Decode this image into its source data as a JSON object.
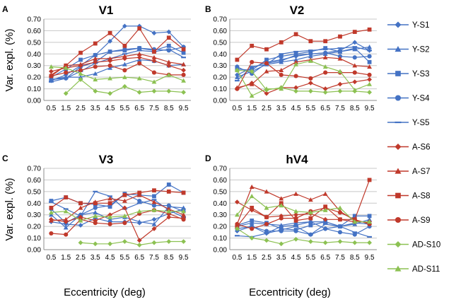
{
  "chart_data": {
    "type": "line",
    "x": [
      0.5,
      1.5,
      2.5,
      3.5,
      4.5,
      5.5,
      6.5,
      7.5,
      8.5,
      9.5
    ],
    "x_tick_labels": [
      "0.5",
      "1.5",
      "2.5",
      "3.5",
      "4.5",
      "5.5",
      "6.5",
      "7.5",
      "8.5",
      "9.5"
    ],
    "ylim": [
      0,
      0.7
    ],
    "y_tick_labels": [
      "0.00",
      "0.10",
      "0.20",
      "0.30",
      "0.40",
      "0.50",
      "0.60",
      "0.70"
    ],
    "ylabel": "Var. expl. (%)",
    "xlabel": "Eccentricity (deg)",
    "grid": true,
    "legend": [
      {
        "name": "Y-S1",
        "color": "#4472c4",
        "marker": "diamond"
      },
      {
        "name": "Y-S2",
        "color": "#4472c4",
        "marker": "triangle"
      },
      {
        "name": "Y-S3",
        "color": "#4472c4",
        "marker": "square"
      },
      {
        "name": "Y-S4",
        "color": "#4472c4",
        "marker": "circle"
      },
      {
        "name": "Y-S5",
        "color": "#4472c4",
        "marker": "dash"
      },
      {
        "name": "A-S6",
        "color": "#c0392b",
        "marker": "diamond"
      },
      {
        "name": "A-S7",
        "color": "#c0392b",
        "marker": "triangle"
      },
      {
        "name": "A-S8",
        "color": "#c0392b",
        "marker": "square"
      },
      {
        "name": "A-S9",
        "color": "#c0392b",
        "marker": "circle"
      },
      {
        "name": "AD-S10",
        "color": "#8cc152",
        "marker": "diamond"
      },
      {
        "name": "AD-S11",
        "color": "#8cc152",
        "marker": "triangle"
      }
    ],
    "panels": [
      {
        "letter": "A",
        "title": "V1",
        "series": [
          {
            "name": "Y-S1",
            "values": [
              0.17,
              0.22,
              0.3,
              0.39,
              0.51,
              0.64,
              0.64,
              0.58,
              0.59,
              0.46
            ]
          },
          {
            "name": "Y-S2",
            "values": [
              0.18,
              0.2,
              0.2,
              0.23,
              0.28,
              0.31,
              0.35,
              0.34,
              0.3,
              0.31
            ]
          },
          {
            "name": "Y-S3",
            "values": [
              0.2,
              0.27,
              0.35,
              0.39,
              0.42,
              0.43,
              0.45,
              0.43,
              0.47,
              0.41
            ]
          },
          {
            "name": "Y-S4",
            "values": [
              0.18,
              0.19,
              0.29,
              0.33,
              0.42,
              0.44,
              0.45,
              0.44,
              0.43,
              0.46
            ]
          },
          {
            "name": "Y-S5",
            "values": [
              0.16,
              0.19,
              0.25,
              0.32,
              0.36,
              0.4,
              0.43,
              0.42,
              0.44,
              0.37
            ]
          },
          {
            "name": "A-S6",
            "values": [
              0.25,
              0.28,
              0.3,
              0.33,
              0.34,
              0.36,
              0.37,
              0.34,
              0.3,
              0.26
            ]
          },
          {
            "name": "A-S7",
            "values": [
              0.22,
              0.3,
              0.31,
              0.36,
              0.36,
              0.38,
              0.4,
              0.37,
              0.33,
              0.31
            ]
          },
          {
            "name": "A-S8",
            "values": [
              0.21,
              0.3,
              0.41,
              0.49,
              0.58,
              0.47,
              0.62,
              0.42,
              0.54,
              0.44
            ]
          },
          {
            "name": "A-S9",
            "values": [
              0.21,
              0.24,
              0.26,
              0.29,
              0.3,
              0.26,
              0.32,
              0.24,
              0.22,
              0.22
            ]
          },
          {
            "name": "AD-S10",
            "values": [
              null,
              0.06,
              0.18,
              0.08,
              0.06,
              0.12,
              0.07,
              0.08,
              0.08,
              0.07
            ]
          },
          {
            "name": "AD-S11",
            "values": [
              0.29,
              0.28,
              0.23,
              0.18,
              0.19,
              0.2,
              0.19,
              0.16,
              0.22,
              0.17
            ]
          }
        ]
      },
      {
        "letter": "B",
        "title": "V2",
        "series": [
          {
            "name": "Y-S1",
            "values": [
              0.22,
              0.28,
              0.33,
              0.35,
              0.38,
              0.4,
              0.41,
              0.43,
              0.5,
              0.43
            ]
          },
          {
            "name": "Y-S2",
            "values": [
              0.2,
              0.25,
              0.31,
              0.33,
              0.35,
              0.38,
              0.4,
              0.42,
              0.44,
              0.46
            ]
          },
          {
            "name": "Y-S3",
            "values": [
              0.27,
              0.26,
              0.35,
              0.38,
              0.4,
              0.42,
              0.45,
              0.42,
              0.45,
              0.33
            ]
          },
          {
            "name": "Y-S4",
            "values": [
              0.29,
              0.23,
              0.32,
              0.34,
              0.39,
              0.4,
              0.41,
              0.38,
              0.37,
              0.38
            ]
          },
          {
            "name": "Y-S5",
            "values": [
              0.17,
              0.29,
              0.31,
              0.4,
              0.42,
              0.43,
              0.44,
              0.45,
              0.46,
              0.43
            ]
          },
          {
            "name": "A-S6",
            "values": [
              0.1,
              0.15,
              0.06,
              0.11,
              0.11,
              0.15,
              0.1,
              0.14,
              0.16,
              0.18
            ]
          },
          {
            "name": "A-S7",
            "values": [
              0.11,
              0.14,
              0.25,
              0.26,
              0.33,
              0.35,
              0.37,
              0.36,
              0.3,
              0.29
            ]
          },
          {
            "name": "A-S8",
            "values": [
              0.35,
              0.47,
              0.44,
              0.5,
              0.57,
              0.51,
              0.51,
              0.55,
              0.59,
              0.61
            ]
          },
          {
            "name": "A-S9",
            "values": [
              0.1,
              0.33,
              0.32,
              0.22,
              0.21,
              0.19,
              0.24,
              0.24,
              0.24,
              0.22
            ]
          },
          {
            "name": "AD-S10",
            "values": [
              0.26,
              0.25,
              0.09,
              0.11,
              0.08,
              0.08,
              0.07,
              0.08,
              0.08,
              0.07
            ]
          },
          {
            "name": "AD-S11",
            "values": [
              0.26,
              0.04,
              0.1,
              0.1,
              0.31,
              0.34,
              0.29,
              0.25,
              0.09,
              0.14
            ]
          }
        ]
      },
      {
        "letter": "C",
        "title": "V3",
        "series": [
          {
            "name": "Y-S1",
            "values": [
              0.24,
              0.22,
              0.21,
              0.27,
              0.24,
              0.24,
              0.23,
              0.26,
              0.31,
              0.35
            ]
          },
          {
            "name": "Y-S2",
            "values": [
              0.3,
              0.19,
              0.3,
              0.32,
              0.26,
              0.28,
              0.24,
              0.22,
              0.37,
              0.36
            ]
          },
          {
            "name": "Y-S3",
            "values": [
              0.42,
              0.45,
              0.4,
              0.39,
              0.37,
              0.48,
              0.47,
              0.46,
              0.56,
              0.49
            ]
          },
          {
            "name": "Y-S4",
            "values": [
              0.35,
              0.23,
              0.3,
              0.36,
              0.38,
              0.48,
              0.42,
              0.38,
              0.38,
              0.33
            ]
          },
          {
            "name": "Y-S5",
            "values": [
              0.41,
              0.35,
              0.29,
              0.5,
              0.46,
              0.35,
              0.4,
              0.43,
              0.34,
              0.28
            ]
          },
          {
            "name": "A-S6",
            "values": [
              0.26,
              0.24,
              0.28,
              0.25,
              0.3,
              0.36,
              0.08,
              0.18,
              0.28,
              0.27
            ]
          },
          {
            "name": "A-S7",
            "values": [
              0.25,
              0.26,
              0.36,
              0.41,
              0.44,
              0.42,
              0.47,
              0.41,
              0.35,
              0.3
            ]
          },
          {
            "name": "A-S8",
            "values": [
              0.36,
              0.45,
              0.4,
              0.4,
              0.4,
              0.47,
              0.49,
              0.51,
              0.5,
              0.49
            ]
          },
          {
            "name": "A-S9",
            "values": [
              0.14,
              0.13,
              0.26,
              0.23,
              0.22,
              0.23,
              0.31,
              0.34,
              0.31,
              0.26
            ]
          },
          {
            "name": "AD-S10",
            "values": [
              null,
              null,
              0.06,
              0.05,
              0.05,
              0.07,
              0.04,
              0.06,
              0.07,
              0.07
            ]
          },
          {
            "name": "AD-S11",
            "values": [
              0.32,
              0.33,
              0.25,
              0.29,
              0.28,
              0.29,
              0.33,
              0.34,
              0.33,
              0.33
            ]
          }
        ]
      },
      {
        "letter": "D",
        "title": "hV4",
        "series": [
          {
            "name": "Y-S1",
            "values": [
              0.16,
              0.2,
              0.14,
              0.2,
              0.21,
              0.24,
              0.18,
              0.2,
              0.23,
              0.22
            ]
          },
          {
            "name": "Y-S2",
            "values": [
              0.2,
              0.23,
              0.22,
              0.21,
              0.23,
              0.24,
              0.24,
              0.2,
              0.22,
              0.26
            ]
          },
          {
            "name": "Y-S3",
            "values": [
              0.21,
              0.25,
              0.23,
              0.18,
              0.17,
              0.21,
              0.24,
              0.2,
              0.29,
              0.29
            ]
          },
          {
            "name": "Y-S4",
            "values": [
              0.18,
              0.2,
              0.16,
              0.16,
              0.16,
              0.13,
              0.18,
              0.15,
              0.13,
              0.2
            ]
          },
          {
            "name": "Y-S5",
            "values": [
              0.12,
              0.11,
              0.14,
              0.17,
              0.2,
              0.13,
              0.22,
              0.2,
              0.15,
              0.11
            ]
          },
          {
            "name": "A-S6",
            "values": [
              0.41,
              0.34,
              0.28,
              0.29,
              0.3,
              0.31,
              0.26,
              0.26,
              0.24,
              0.24
            ]
          },
          {
            "name": "A-S7",
            "values": [
              0.22,
              0.54,
              0.5,
              0.44,
              0.48,
              0.43,
              0.48,
              0.33,
              0.25,
              0.23
            ]
          },
          {
            "name": "A-S8",
            "values": [
              0.2,
              0.36,
              0.28,
              0.4,
              0.25,
              0.27,
              0.37,
              0.26,
              0.26,
              0.6
            ]
          },
          {
            "name": "A-S9",
            "values": [
              0.22,
              0.18,
              0.22,
              0.27,
              0.27,
              0.33,
              0.36,
              0.32,
              0.26,
              0.22
            ]
          },
          {
            "name": "AD-S10",
            "values": [
              0.18,
              0.1,
              0.08,
              0.05,
              0.09,
              0.07,
              0.06,
              0.07,
              0.06,
              0.06
            ]
          },
          {
            "name": "AD-S11",
            "values": [
              0.3,
              0.46,
              0.36,
              0.38,
              0.33,
              0.32,
              0.34,
              0.36,
              0.24,
              0.24
            ]
          }
        ]
      }
    ]
  }
}
